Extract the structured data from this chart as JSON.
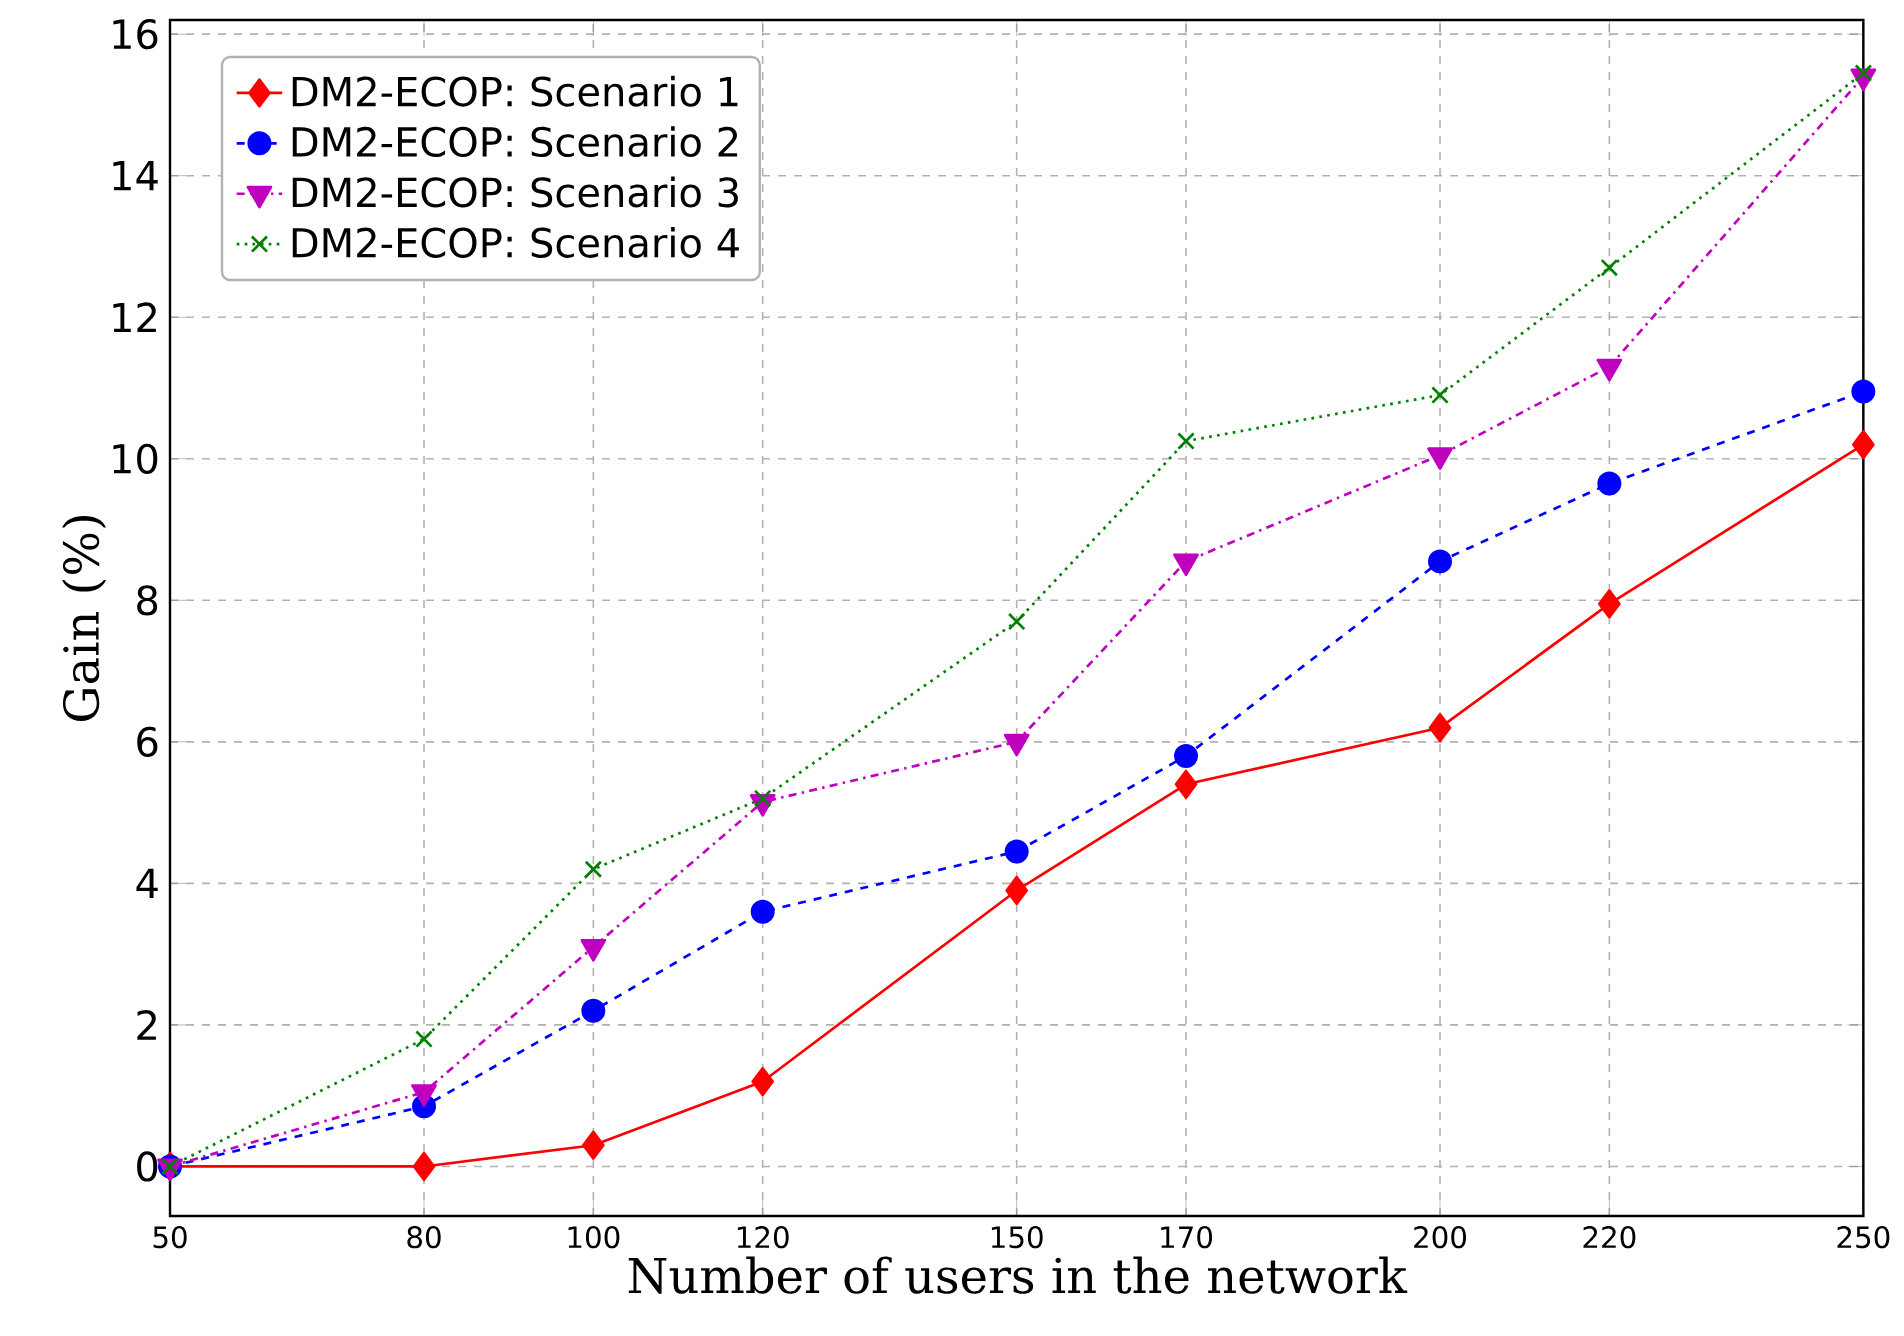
{
  "chart_data": {
    "type": "line",
    "xlabel": "Number of users in the network",
    "ylabel": "Gain (%)",
    "x": [
      50,
      80,
      100,
      120,
      150,
      170,
      200,
      220,
      250
    ],
    "series": [
      {
        "name": "DM2-ECOP: Scenario 1",
        "color": "#ff0000",
        "marker": "diamond",
        "line_style": "solid",
        "values": [
          0,
          0,
          0.3,
          1.2,
          3.9,
          5.4,
          6.2,
          7.95,
          10.2
        ]
      },
      {
        "name": "DM2-ECOP: Scenario 2",
        "color": "#0000ff",
        "marker": "circle",
        "line_style": "dashed",
        "values": [
          0,
          0.85,
          2.2,
          3.6,
          4.45,
          5.8,
          8.55,
          9.65,
          10.95
        ]
      },
      {
        "name": "DM2-ECOP: Scenario 3",
        "color": "#bf00bf",
        "marker": "triangle_down",
        "line_style": "dashdot",
        "values": [
          0,
          1.05,
          3.1,
          5.15,
          6.0,
          8.55,
          10.05,
          11.3,
          15.4
        ]
      },
      {
        "name": "DM2-ECOP: Scenario 4",
        "color": "#008000",
        "marker": "cross",
        "line_style": "dotted",
        "values": [
          0,
          1.8,
          4.2,
          5.2,
          7.7,
          10.25,
          10.9,
          12.7,
          15.45
        ]
      }
    ],
    "xlim": [
      50,
      250
    ],
    "xticks": [
      50,
      80,
      100,
      120,
      150,
      170,
      200,
      220,
      250
    ],
    "ylim": [
      -0.7,
      16.2
    ],
    "yticks": [
      0,
      2,
      4,
      6,
      8,
      10,
      12,
      14,
      16
    ],
    "grid": true,
    "legend": "top left"
  }
}
